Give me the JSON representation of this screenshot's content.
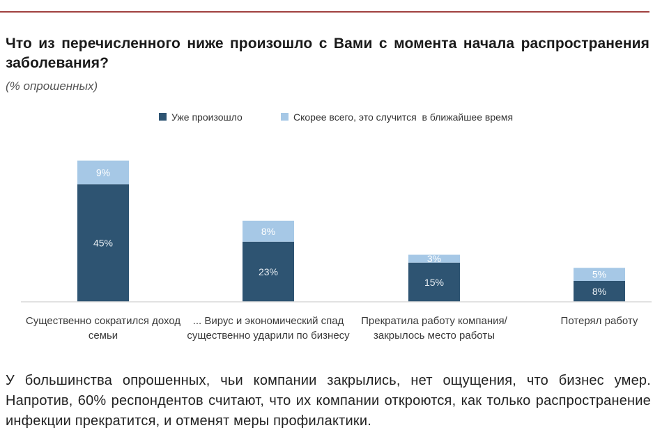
{
  "title": "Что из перечисленного ниже произошло с Вами с момента начала распространения заболевания?",
  "subtitle": "(% опрошенных)",
  "footer": "У большинства опрошенных, чьи компании закрылись, нет ощущения, что бизнес умер. Напротив, 60% респондентов считают, что их компании откроются, как только распространение инфекции прекратится, и отменят меры профилактики.",
  "colors": {
    "rule": "#a0403f",
    "series_dark": "#2e5472",
    "series_light": "#a6c8e6"
  },
  "chart_data": {
    "type": "bar",
    "stacked": true,
    "categories": [
      "Существенно сократился доход семьи",
      "... Вирус и экономический спад существенно ударили по бизнесу",
      "Прекратила работу компания/закрылось место работы",
      "Потерял работу"
    ],
    "series": [
      {
        "name": "Уже произошло",
        "values": [
          45,
          23,
          15,
          8
        ],
        "labels": [
          "45%",
          "23%",
          "15%",
          "8%"
        ]
      },
      {
        "name": "Скорее всего, это случится  в ближайшее время",
        "values": [
          9,
          8,
          3,
          5
        ],
        "labels": [
          "9%",
          "8%",
          "3%",
          "5%"
        ]
      }
    ],
    "ylim": [
      0,
      60
    ],
    "grid": false,
    "legend_position": "top-center"
  }
}
